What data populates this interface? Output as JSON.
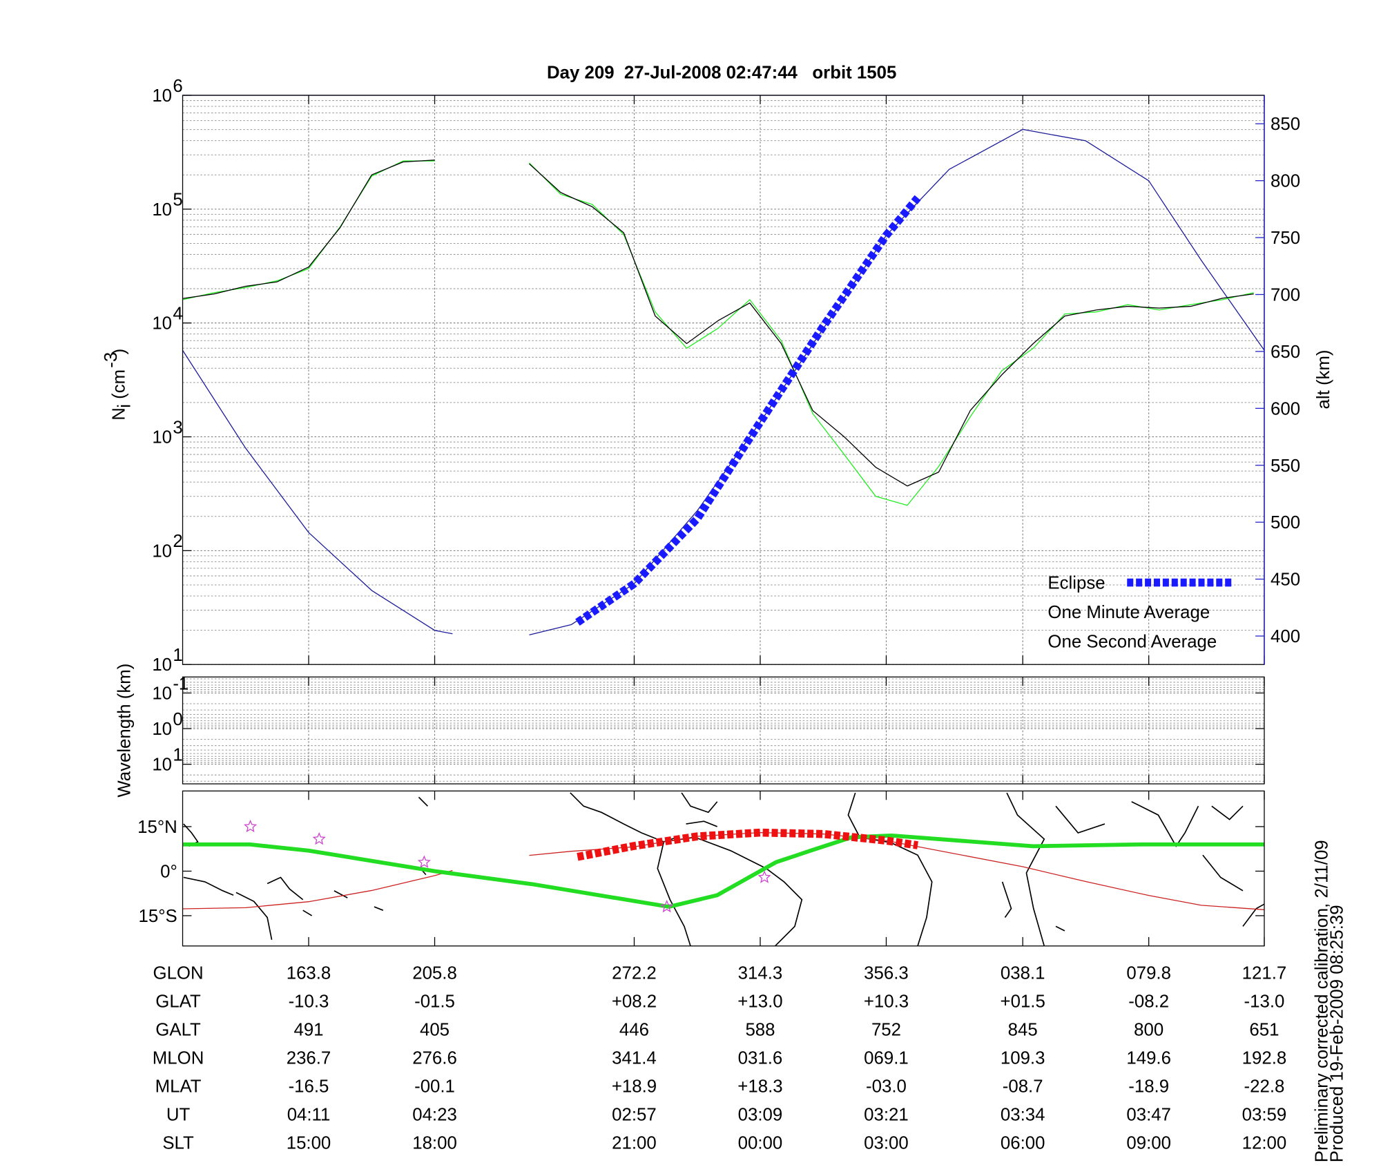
{
  "chart_data": [
    {
      "type": "line",
      "title": "Day 209  27-Jul-2008 02:47:44   orbit 1505",
      "ylabel": {
        "text": "N",
        "sub": "i",
        "unit": "(cm",
        "sup": "-3",
        "close": ")"
      },
      "y2label": "alt (km)",
      "y2color": "#2222cc",
      "ylog": true,
      "grid": true,
      "legend": "lower right",
      "xlim": [
        0,
        103
      ],
      "xticks": [
        12,
        24,
        43,
        55,
        67,
        80,
        92,
        103
      ],
      "ylim": [
        10,
        1000000
      ],
      "yticks": [
        {
          "value": 10,
          "label": "10",
          "exponent": "1"
        },
        {
          "value": 100,
          "label": "10",
          "exponent": "2"
        },
        {
          "value": 1000,
          "label": "10",
          "exponent": "3"
        },
        {
          "value": 10000,
          "label": "10",
          "exponent": "4"
        },
        {
          "value": 100000,
          "label": "10",
          "exponent": "5"
        },
        {
          "value": 1000000,
          "label": "10",
          "exponent": "6"
        }
      ],
      "y2lim": [
        375,
        875
      ],
      "y2ticks": [
        400,
        450,
        500,
        550,
        600,
        650,
        700,
        750,
        800,
        850
      ],
      "x": [
        0,
        3,
        6,
        9,
        12,
        15,
        18,
        21,
        24,
        27,
        30,
        33,
        36,
        39,
        42,
        45,
        48,
        51,
        54,
        57,
        60,
        63,
        66,
        69,
        72,
        75,
        78,
        81,
        84,
        87,
        90,
        93,
        96,
        99,
        102
      ],
      "series": [
        {
          "name": "Eclipse",
          "color": "#1a1aff",
          "axis": "y2",
          "style": "dashed",
          "x": [
            37.6,
            43,
            49,
            55,
            61,
            67,
            70
          ],
          "values": [
            412,
            446,
            503,
            588,
            672,
            752,
            785
          ]
        },
        {
          "name": "One Minute Average",
          "color": "#000000",
          "style": "thin",
          "values": [
            16400,
            18000,
            21000,
            23000,
            31000,
            69000,
            200000,
            260000,
            270000,
            null,
            null,
            250000,
            140000,
            105000,
            62000,
            11500,
            6600,
            10500,
            15000,
            6600,
            1700,
            1000,
            540,
            370,
            490,
            1700,
            3500,
            6600,
            11500,
            13000,
            14000,
            13500,
            14000,
            16500,
            18000
          ]
        },
        {
          "name": "One Second Average",
          "color": "#22ee22",
          "style": "thin",
          "values": [
            16000,
            18500,
            20500,
            23500,
            30000,
            70000,
            195000,
            265000,
            265000,
            null,
            null,
            255000,
            135000,
            110000,
            60000,
            12500,
            6000,
            9000,
            16000,
            7000,
            1600,
            700,
            300,
            250,
            550,
            1500,
            3800,
            6000,
            12000,
            12500,
            14500,
            13000,
            14500,
            16000,
            18500
          ]
        },
        {
          "color": "#1a1a99",
          "axis": "y2",
          "style": "thin",
          "x": [
            0,
            6,
            12,
            18,
            24,
            25.7,
            30,
            33,
            37,
            43,
            49,
            55,
            61,
            67,
            73,
            80,
            86,
            92,
            97,
            103
          ],
          "values": [
            651,
            565,
            491,
            440,
            405,
            402,
            null,
            401,
            410,
            446,
            510,
            588,
            670,
            752,
            810,
            845,
            835,
            800,
            730,
            651
          ]
        }
      ]
    },
    {
      "type": "line",
      "ylabel": "Wavelength (km)",
      "ylog": true,
      "grid": true,
      "ylim": [
        35.5,
        0.0355
      ],
      "yticks": [
        {
          "value": 0.1,
          "label": "10",
          "exponent": "-1"
        },
        {
          "value": 1,
          "label": "10",
          "exponent": "0"
        },
        {
          "value": 10,
          "label": "10",
          "exponent": "1"
        }
      ],
      "series": []
    },
    {
      "type": "line",
      "grid": false,
      "ylim": [
        -25.2,
        27
      ],
      "yticks": [
        {
          "value": 15,
          "label": "15°N"
        },
        {
          "value": 0,
          "label": "0°"
        },
        {
          "value": -15,
          "label": "15°S"
        }
      ],
      "series": [
        {
          "color": "#cc44cc",
          "marker": "star",
          "x": [
            6.45,
            13,
            23,
            46.1,
            55.4
          ],
          "values": [
            15,
            10.8,
            3,
            -12,
            -2.1
          ]
        },
        {
          "color": "#ee1111",
          "style": "dashed",
          "x": [
            37.6,
            43,
            49,
            55,
            61,
            67,
            70
          ],
          "values": [
            4.8,
            8.5,
            11.7,
            13,
            12.5,
            10.3,
            8.7
          ]
        },
        {
          "color": "#22dd22",
          "style": "thick",
          "x": [
            0,
            6.4,
            12,
            24,
            33.5,
            46.3,
            50.9,
            56.5,
            59.8,
            63.7,
            67.5,
            81,
            91.3,
            103
          ],
          "values": [
            9,
            9,
            6.9,
            0,
            -4.5,
            -12,
            -8.1,
            3,
            6.9,
            11.4,
            12,
            8.4,
            9,
            9
          ]
        },
        {
          "color": "#cc2222",
          "style": "thin",
          "x": [
            0,
            6,
            12,
            18,
            24,
            25.7,
            30,
            33,
            37,
            43,
            49,
            55,
            61,
            67,
            80,
            86,
            92,
            97,
            103
          ],
          "values": [
            -12.7,
            -12.3,
            -10.3,
            -6.5,
            -1.5,
            0.2,
            null,
            5.3,
            6.7,
            8.2,
            11.7,
            13,
            12.5,
            10.3,
            1.5,
            -3.5,
            -8.2,
            -11.5,
            -13
          ]
        }
      ]
    }
  ],
  "table": {
    "row_labels": [
      "GLON",
      "GLAT",
      "GALT",
      "MLON",
      "MLAT",
      "UT",
      "SLT"
    ],
    "rows": [
      [
        "163.8",
        "205.8",
        "272.2",
        "314.3",
        "356.3",
        "038.1",
        "079.8",
        "121.7"
      ],
      [
        "-10.3",
        "-01.5",
        "+08.2",
        "+13.0",
        "+10.3",
        "+01.5",
        "-08.2",
        "-13.0"
      ],
      [
        "491",
        "405",
        "446",
        "588",
        "752",
        "845",
        "800",
        "651"
      ],
      [
        "236.7",
        "276.6",
        "341.4",
        "031.6",
        "069.1",
        "109.3",
        "149.6",
        "192.8"
      ],
      [
        "-16.5",
        "-00.1",
        "+18.9",
        "+18.3",
        "-03.0",
        "-08.7",
        "-18.9",
        "-22.8"
      ],
      [
        "04:11",
        "04:23",
        "02:57",
        "03:09",
        "03:21",
        "03:34",
        "03:47",
        "03:59"
      ],
      [
        "15:00",
        "18:00",
        "21:00",
        "00:00",
        "03:00",
        "06:00",
        "09:00",
        "12:00"
      ]
    ]
  },
  "notes": [
    "Preliminary corrected calibration, 2/11/09",
    "Produced 19-Feb-2009 08:25:39"
  ]
}
